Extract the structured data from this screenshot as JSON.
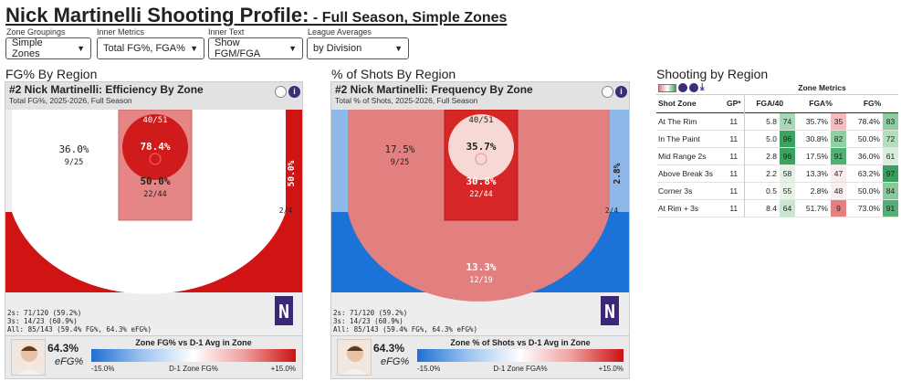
{
  "header": {
    "title": "Nick Martinelli Shooting Profile:",
    "subtitle_prefix": " - ",
    "subtitle_a": "Full Season",
    "subtitle_sep": ", ",
    "subtitle_b": "Simple Zones"
  },
  "controls": [
    {
      "label": "Zone Groupings",
      "value": "Simple Zones"
    },
    {
      "label": "Inner Metrics",
      "value": "Total FG%, FGA%"
    },
    {
      "label": "Inner Text",
      "value": "Show FGM/FGA"
    },
    {
      "label": "League Averages",
      "value": "by Division"
    }
  ],
  "left": {
    "section": "FG% By Region",
    "title": "#2 Nick Martinelli: Efficiency By Zone",
    "subtitle": "Total FG%, 2025-2026, Full Season",
    "zones": {
      "rim": {
        "top": "40/51",
        "main": "78.4%"
      },
      "paint": {
        "main": "50.0%",
        "sub": "22/44"
      },
      "mid": {
        "main": "36.0%",
        "sub": "9/25"
      },
      "corner": {
        "main": "50.0%",
        "sub": "2/4"
      },
      "three": {
        "main": "63.2%",
        "sub": "12/19"
      }
    },
    "stats": [
      "2s: 71/120 (59.2%)",
      "3s: 14/23 (60.9%)",
      "All: 85/143 (59.4% FG%, 64.3% eFG%)"
    ],
    "player_stat": "64.3%",
    "player_stat_label": "eFG%",
    "legend_title": "Zone FG% vs D-1 Avg in Zone",
    "legend_min": "-15.0%",
    "legend_mid": "D-1 Zone FG%",
    "legend_max": "+15.0%",
    "logo_letter": "N"
  },
  "right": {
    "section": "% of Shots By Region",
    "title": "#2 Nick Martinelli: Frequency By Zone",
    "subtitle": "Total % of Shots, 2025-2026, Full Season",
    "zones": {
      "rim": {
        "top": "40/51",
        "main": "35.7%"
      },
      "paint": {
        "main": "30.8%",
        "sub": "22/44"
      },
      "mid": {
        "main": "17.5%",
        "sub": "9/25"
      },
      "corner": {
        "main": "2.8%",
        "sub": "2/4"
      },
      "three": {
        "main": "13.3%",
        "sub": "12/19"
      }
    },
    "stats": [
      "2s: 71/120 (59.2%)",
      "3s: 14/23 (60.9%)",
      "All: 85/143 (59.4% FG%, 64.3% eFG%)"
    ],
    "player_stat": "64.3%",
    "player_stat_label": "eFG%",
    "legend_title": "Zone % of Shots vs D-1 Avg in Zone",
    "legend_min": "-15.0%",
    "legend_mid": "D-1 Zone FGA%",
    "legend_max": "+15.0%",
    "logo_letter": "N"
  },
  "table": {
    "section": "Shooting by Region",
    "group_header": "Zone Metrics",
    "columns": [
      "Shot Zone",
      "GP*",
      "FGA/40",
      "FGA%",
      "FG%"
    ],
    "rows": [
      {
        "zone": "At The Rim",
        "gp": "11",
        "fga40": "5.8",
        "fga40_pct": "74",
        "fgap": "35.7%",
        "fgap_pct": "35",
        "fg": "78.4%",
        "fg_pct": "83"
      },
      {
        "zone": "In The Paint",
        "gp": "11",
        "fga40": "5.0",
        "fga40_pct": "96",
        "fgap": "30.8%",
        "fgap_pct": "82",
        "fg": "50.0%",
        "fg_pct": "72"
      },
      {
        "zone": "Mid Range 2s",
        "gp": "11",
        "fga40": "2.8",
        "fga40_pct": "96",
        "fgap": "17.5%",
        "fgap_pct": "91",
        "fg": "36.0%",
        "fg_pct": "61"
      },
      {
        "zone": "Above Break 3s",
        "gp": "11",
        "fga40": "2.2",
        "fga40_pct": "58",
        "fgap": "13.3%",
        "fgap_pct": "47",
        "fg": "63.2%",
        "fg_pct": "97"
      },
      {
        "zone": "Corner 3s",
        "gp": "11",
        "fga40": "0.5",
        "fga40_pct": "55",
        "fgap": "2.8%",
        "fgap_pct": "48",
        "fg": "50.0%",
        "fg_pct": "84"
      },
      {
        "zone": "At Rim + 3s",
        "gp": "11",
        "fga40": "8.4",
        "fga40_pct": "64",
        "fgap": "51.7%",
        "fgap_pct": "9",
        "fg": "73.0%",
        "fg_pct": "91"
      }
    ],
    "pct_colors": {
      "74": "#a8d9b5",
      "96": "#3aa35f",
      "58": "#e4f1e6",
      "55": "#eaf3ea",
      "64": "#c9e7d0",
      "35": "#f4bcbc",
      "82": "#8fcfa3",
      "91": "#52b072",
      "47": "#f8ecec",
      "48": "#fbf0f0",
      "9": "#e67f7f",
      "83": "#8ccea0",
      "72": "#b3dfbf",
      "61": "#d9eedd",
      "97": "#36a05c",
      "84": "#87cb9b"
    }
  }
}
